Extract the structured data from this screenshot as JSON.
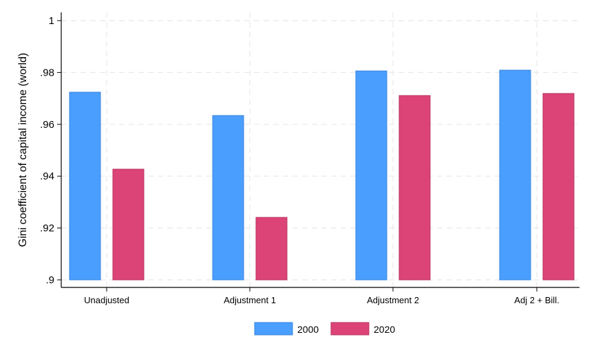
{
  "chart_data": {
    "type": "bar",
    "title": "",
    "xlabel": "",
    "ylabel": "Gini coefficient of capital income (world)",
    "categories": [
      "Unadjusted",
      "Adjustment 1",
      "Adjustment 2",
      "Adj 2 + Bill."
    ],
    "series": [
      {
        "name": "2000",
        "color": "#4a9efd",
        "values": [
          0.9724,
          0.9634,
          0.9806,
          0.9809
        ]
      },
      {
        "name": "2020",
        "color": "#dc4377",
        "values": [
          0.9427,
          0.9241,
          0.9711,
          0.9719
        ]
      }
    ],
    "ylim": [
      0.9,
      1.0
    ],
    "yticks": [
      0.9,
      0.92,
      0.94,
      0.96,
      0.98,
      1.0
    ],
    "ytick_labels": [
      ".9",
      ".92",
      ".94",
      ".96",
      ".98",
      "1"
    ],
    "grid": true,
    "legend_position": "bottom"
  }
}
